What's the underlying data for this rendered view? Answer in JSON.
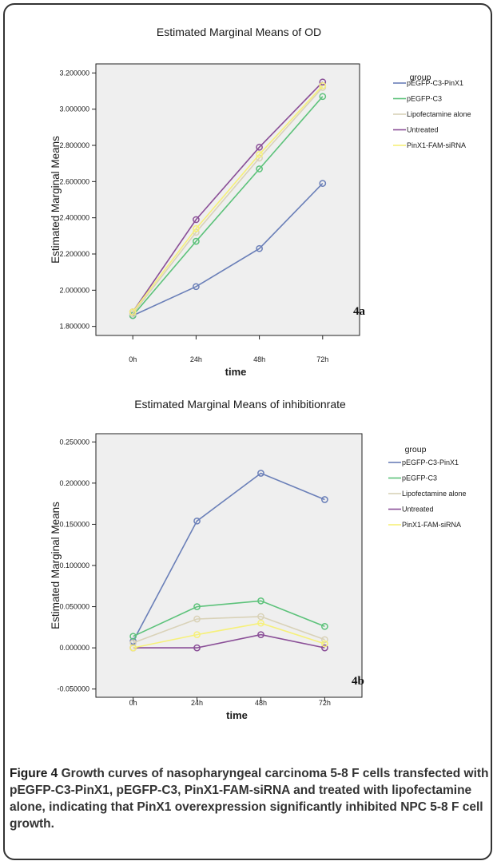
{
  "chart_data": [
    {
      "type": "line",
      "title": "Estimated Marginal Means of OD",
      "xlabel": "time",
      "ylabel": "Estimated Marginal Means",
      "categories": [
        "0h",
        "24h",
        "48h",
        "72h"
      ],
      "ylim": [
        1.75,
        3.25
      ],
      "yticks": [
        "1.800000",
        "2.000000",
        "2.200000",
        "2.400000",
        "2.600000",
        "2.800000",
        "3.000000",
        "3.200000"
      ],
      "ytick_values": [
        1.8,
        2.0,
        2.2,
        2.4,
        2.6,
        2.8,
        3.0,
        3.2
      ],
      "legend_title": "group",
      "legend_placement": "right",
      "panel_label": "4a",
      "series": [
        {
          "name": "pEGFP-C3-PinX1",
          "color": "#6a7fb8",
          "values": [
            1.86,
            2.02,
            2.23,
            2.59
          ]
        },
        {
          "name": "pEGFP-C3",
          "color": "#5cc27a",
          "values": [
            1.86,
            2.27,
            2.67,
            3.07
          ]
        },
        {
          "name": "Lipofectamine alone",
          "color": "#d9d2b8",
          "values": [
            1.87,
            2.32,
            2.73,
            3.12
          ]
        },
        {
          "name": "Untreated",
          "color": "#8a4f97",
          "values": [
            1.88,
            2.39,
            2.79,
            3.15
          ]
        },
        {
          "name": "PinX1-FAM-siRNA",
          "color": "#f6f07a",
          "values": [
            1.88,
            2.34,
            2.75,
            3.13
          ]
        }
      ]
    },
    {
      "type": "line",
      "title": "Estimated Marginal Means of inhibitionrate",
      "xlabel": "time",
      "ylabel": "Estimated Marginal Means",
      "categories": [
        "0h",
        "24h",
        "48h",
        "72h"
      ],
      "ylim": [
        -0.06,
        0.26
      ],
      "yticks": [
        "-0.050000",
        "0.000000",
        "0.050000",
        "0.100000",
        "0.150000",
        "0.200000",
        "0.250000"
      ],
      "ytick_values": [
        -0.05,
        0.0,
        0.05,
        0.1,
        0.15,
        0.2,
        0.25
      ],
      "legend_title": "group",
      "legend_placement": "right",
      "panel_label": "4b",
      "series": [
        {
          "name": "pEGFP-C3-PinX1",
          "color": "#6a7fb8",
          "values": [
            0.008,
            0.154,
            0.212,
            0.18
          ]
        },
        {
          "name": "pEGFP-C3",
          "color": "#5cc27a",
          "values": [
            0.014,
            0.05,
            0.057,
            0.026
          ]
        },
        {
          "name": "Lipofectamine alone",
          "color": "#d9d2b8",
          "values": [
            0.006,
            0.035,
            0.038,
            0.01
          ]
        },
        {
          "name": "Untreated",
          "color": "#8a4f97",
          "values": [
            0.0,
            0.0,
            0.016,
            0.0
          ]
        },
        {
          "name": "PinX1-FAM-siRNA",
          "color": "#f6f07a",
          "values": [
            0.0,
            0.016,
            0.03,
            0.005
          ]
        }
      ]
    }
  ],
  "caption": {
    "label": "Figure 4",
    "text": " Growth curves of nasopharyngeal carcinoma 5-8 F cells transfected with pEGFP-C3-PinX1, pEGFP-C3, PinX1-FAM-siRNA and treated with lipofectamine alone, indicating that PinX1 overexpression significantly inhibited NPC 5-8 F cell growth."
  },
  "colors": {
    "plot_background": "#efefef",
    "frame_border": "#333333"
  }
}
